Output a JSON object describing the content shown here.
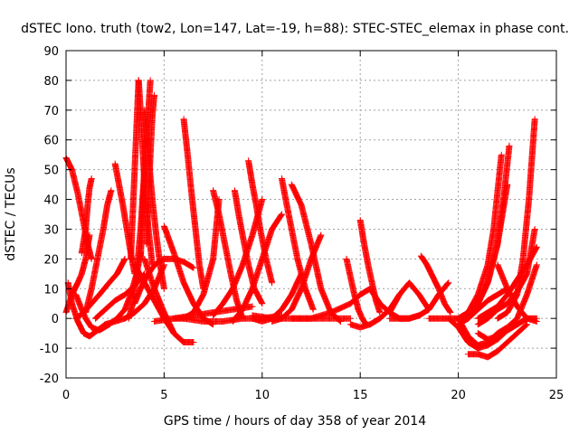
{
  "chart_data": {
    "type": "scatter",
    "title": "dSTEC Iono. truth (tow2, Lon=147, Lat=-19, h=88): STEC-STEC_elemax in phase cont.",
    "xlabel": "GPS time / hours of day 358 of year 2014",
    "ylabel": "dSTEC  / TECUs",
    "xlim": [
      0,
      25
    ],
    "ylim": [
      -20,
      90
    ],
    "xticks": [
      "0",
      "5",
      "10",
      "15",
      "20",
      "25"
    ],
    "yticks": [
      "-20",
      "-10",
      "0",
      "10",
      "20",
      "30",
      "40",
      "50",
      "60",
      "70",
      "80",
      "90"
    ],
    "grid": true,
    "marker": "plus",
    "color": "#ff0000",
    "series": [
      {
        "x": [
          0.0,
          0.3,
          0.6,
          0.9,
          1.1,
          1.3
        ],
        "y": [
          54,
          50,
          42,
          32,
          25,
          20
        ]
      },
      {
        "x": [
          0.1,
          0.3,
          0.6,
          0.9,
          1.2,
          1.6,
          2.0
        ],
        "y": [
          12,
          5,
          -1,
          -5,
          -6,
          -4,
          -2
        ]
      },
      {
        "x": [
          0.0,
          0.3,
          0.6,
          0.8,
          1.0,
          1.2
        ],
        "y": [
          2,
          8,
          12,
          15,
          20,
          28
        ]
      },
      {
        "x": [
          0.5,
          0.8,
          1.0,
          1.3,
          1.7,
          2.2
        ],
        "y": [
          8,
          3,
          0,
          -3,
          -4,
          -2
        ]
      },
      {
        "x": [
          0.8,
          1.0,
          1.1,
          1.2,
          1.3
        ],
        "y": [
          22,
          30,
          38,
          44,
          47
        ]
      },
      {
        "x": [
          0.5,
          0.9,
          1.3,
          1.7,
          2.2,
          2.6,
          3.0
        ],
        "y": [
          0,
          2,
          5,
          8,
          12,
          15,
          20
        ]
      },
      {
        "x": [
          1.0,
          1.3,
          1.6,
          1.9,
          2.1,
          2.3
        ],
        "y": [
          2,
          10,
          20,
          30,
          38,
          43
        ]
      },
      {
        "x": [
          2.5,
          2.7,
          2.9,
          3.1,
          3.3,
          3.5
        ],
        "y": [
          52,
          45,
          38,
          30,
          22,
          15
        ]
      },
      {
        "x": [
          1.5,
          2.0,
          2.5,
          3.0,
          3.5,
          4.0
        ],
        "y": [
          0,
          3,
          6,
          8,
          11,
          15
        ]
      },
      {
        "x": [
          2.2,
          2.6,
          3.0,
          3.3,
          3.6,
          3.8
        ],
        "y": [
          -2,
          0,
          3,
          8,
          15,
          22
        ]
      },
      {
        "x": [
          3.3,
          3.4,
          3.5,
          3.6,
          3.7
        ],
        "y": [
          20,
          35,
          50,
          65,
          80
        ]
      },
      {
        "x": [
          3.7,
          3.8,
          3.9,
          4.0,
          4.2,
          4.4
        ],
        "y": [
          80,
          70,
          58,
          45,
          30,
          18
        ]
      },
      {
        "x": [
          3.8,
          3.9,
          4.0,
          4.1,
          4.2,
          4.3
        ],
        "y": [
          20,
          35,
          50,
          60,
          70,
          80
        ]
      },
      {
        "x": [
          4.0,
          4.2,
          4.4,
          4.6,
          4.8,
          5.0
        ],
        "y": [
          70,
          55,
          40,
          28,
          18,
          10
        ]
      },
      {
        "x": [
          4.1,
          4.2,
          4.3,
          4.4,
          4.5
        ],
        "y": [
          25,
          40,
          55,
          68,
          75
        ]
      },
      {
        "x": [
          3.2,
          3.4,
          3.6,
          3.8,
          4.0
        ],
        "y": [
          0,
          5,
          15,
          30,
          50
        ]
      },
      {
        "x": [
          3.5,
          3.8,
          4.1,
          4.4,
          4.7,
          5.0,
          5.5,
          6.0,
          6.5
        ],
        "y": [
          5,
          10,
          14,
          17,
          19,
          20,
          20,
          19,
          17
        ]
      },
      {
        "x": [
          2.0,
          2.5,
          3.0,
          3.5,
          4.0,
          4.5,
          5.0
        ],
        "y": [
          -2,
          -1,
          0,
          2,
          5,
          10,
          18
        ]
      },
      {
        "x": [
          3.5,
          4.0,
          4.5,
          5.0,
          5.5,
          6.0
        ],
        "y": [
          18,
          12,
          6,
          0,
          -5,
          -8
        ]
      },
      {
        "x": [
          4.0,
          4.5,
          5.0,
          5.5,
          6.0,
          6.5
        ],
        "y": [
          20,
          10,
          2,
          -5,
          -8,
          -8
        ]
      },
      {
        "x": [
          5.0,
          5.5,
          6.0,
          6.5,
          7.0,
          7.5
        ],
        "y": [
          31,
          22,
          12,
          5,
          0,
          -2
        ]
      },
      {
        "x": [
          6.0,
          6.2,
          6.4,
          6.6,
          6.8,
          7.0
        ],
        "y": [
          67,
          55,
          42,
          30,
          18,
          10
        ]
      },
      {
        "x": [
          5.5,
          6.0,
          6.5,
          7.0,
          7.5,
          7.8
        ],
        "y": [
          0,
          0,
          2,
          8,
          20,
          40
        ]
      },
      {
        "x": [
          4.5,
          5.5,
          6.5,
          7.5,
          8.5,
          9.5
        ],
        "y": [
          -1,
          0,
          1,
          2,
          3,
          4
        ]
      },
      {
        "x": [
          6.0,
          7.0,
          8.0,
          9.0,
          10.0,
          11.0
        ],
        "y": [
          0,
          -1,
          -1,
          0,
          0,
          1
        ]
      },
      {
        "x": [
          7.5,
          8.0,
          8.5,
          9.0,
          9.5,
          10.0
        ],
        "y": [
          1,
          5,
          10,
          18,
          28,
          40
        ]
      },
      {
        "x": [
          7.5,
          7.8,
          8.1,
          8.4,
          8.7,
          9.0
        ],
        "y": [
          43,
          35,
          25,
          15,
          6,
          0
        ]
      },
      {
        "x": [
          8.6,
          8.8,
          9.0,
          9.3,
          9.6,
          10.0
        ],
        "y": [
          43,
          35,
          28,
          18,
          10,
          5
        ]
      },
      {
        "x": [
          8.5,
          9.0,
          9.5,
          10.0,
          10.5,
          11.0
        ],
        "y": [
          -1,
          3,
          10,
          20,
          30,
          35
        ]
      },
      {
        "x": [
          9.3,
          9.5,
          9.7,
          9.9,
          10.2,
          10.5
        ],
        "y": [
          53,
          45,
          38,
          30,
          20,
          12
        ]
      },
      {
        "x": [
          9.5,
          10.0,
          10.5,
          11.0,
          11.5,
          12.0
        ],
        "y": [
          0,
          -1,
          0,
          3,
          8,
          15
        ]
      },
      {
        "x": [
          11.0,
          11.2,
          11.5,
          11.8,
          12.2,
          12.6
        ],
        "y": [
          47,
          40,
          30,
          20,
          10,
          3
        ]
      },
      {
        "x": [
          10.5,
          11.0,
          11.5,
          12.0,
          12.5,
          13.0
        ],
        "y": [
          -1,
          0,
          3,
          10,
          20,
          28
        ]
      },
      {
        "x": [
          11.5,
          12.0,
          12.5,
          13.0,
          13.5,
          14.0
        ],
        "y": [
          45,
          38,
          25,
          10,
          2,
          -1
        ]
      },
      {
        "x": [
          9.5,
          10.5,
          11.5,
          12.5,
          13.5,
          14.5
        ],
        "y": [
          1,
          0,
          0,
          0,
          0,
          0
        ]
      },
      {
        "x": [
          11.5,
          12.5,
          13.5,
          14.5,
          15.0,
          15.5
        ],
        "y": [
          0,
          0,
          2,
          5,
          8,
          10
        ]
      },
      {
        "x": [
          14.3,
          14.5,
          14.7,
          14.9,
          15.1,
          15.3
        ],
        "y": [
          20,
          14,
          8,
          3,
          0,
          -2
        ]
      },
      {
        "x": [
          15.0,
          15.2,
          15.4,
          15.6,
          15.8,
          16.0
        ],
        "y": [
          33,
          25,
          18,
          12,
          6,
          2
        ]
      },
      {
        "x": [
          14.5,
          15.0,
          15.5,
          16.0,
          16.5,
          17.0
        ],
        "y": [
          -2,
          -3,
          -2,
          0,
          3,
          8
        ]
      },
      {
        "x": [
          15.5,
          16.0,
          16.5,
          17.0,
          17.5,
          18.0
        ],
        "y": [
          10,
          5,
          2,
          0,
          0,
          1
        ]
      },
      {
        "x": [
          16.5,
          17.0,
          17.5,
          18.0,
          18.5
        ],
        "y": [
          2,
          8,
          12,
          8,
          3
        ]
      },
      {
        "x": [
          16.5,
          17.0,
          17.5,
          18.0,
          18.5,
          19.0,
          19.5
        ],
        "y": [
          0,
          0,
          0,
          1,
          3,
          8,
          12
        ]
      },
      {
        "x": [
          18.1,
          18.4,
          18.7,
          19.0,
          19.3,
          19.6
        ],
        "y": [
          21,
          18,
          14,
          10,
          5,
          2
        ]
      },
      {
        "x": [
          18.5,
          19.0,
          19.5,
          20.0,
          20.5
        ],
        "y": [
          0,
          0,
          0,
          0,
          0
        ]
      },
      {
        "x": [
          19.5,
          20.0,
          20.5,
          21.0,
          21.5,
          22.0,
          22.5,
          23.0,
          23.5
        ],
        "y": [
          0,
          -3,
          -8,
          -10,
          -9,
          -7,
          -4,
          -2,
          0
        ]
      },
      {
        "x": [
          20.0,
          20.5,
          21.0,
          21.5,
          22.0,
          22.5,
          23.0
        ],
        "y": [
          0,
          -6,
          -9,
          -8,
          -5,
          -3,
          -1
        ]
      },
      {
        "x": [
          20.5,
          21.0,
          21.5,
          22.0,
          22.5,
          23.0,
          23.5
        ],
        "y": [
          -12,
          -12,
          -13,
          -11,
          -8,
          -5,
          -2
        ]
      },
      {
        "x": [
          21.0,
          21.5,
          22.0,
          22.5,
          23.0,
          23.5,
          24.0
        ],
        "y": [
          -5,
          -7,
          -6,
          -4,
          -2,
          0,
          0
        ]
      },
      {
        "x": [
          20.0,
          20.5,
          21.0,
          21.5,
          22.0,
          22.5
        ],
        "y": [
          0,
          2,
          5,
          12,
          25,
          45
        ]
      },
      {
        "x": [
          20.5,
          21.0,
          21.5,
          22.0,
          22.3,
          22.6
        ],
        "y": [
          0,
          5,
          12,
          25,
          40,
          58
        ]
      },
      {
        "x": [
          20.0,
          20.5,
          21.0,
          21.5,
          21.8,
          22.2
        ],
        "y": [
          0,
          2,
          8,
          18,
          30,
          55
        ]
      },
      {
        "x": [
          22.0,
          22.5,
          23.0,
          23.3,
          23.6,
          23.9
        ],
        "y": [
          0,
          2,
          8,
          20,
          40,
          67
        ]
      },
      {
        "x": [
          21.0,
          21.5,
          22.0,
          22.5,
          23.0,
          23.5,
          23.9
        ],
        "y": [
          -2,
          0,
          3,
          5,
          9,
          15,
          30
        ]
      },
      {
        "x": [
          20.0,
          20.5,
          21.0,
          21.5,
          22.0,
          22.5
        ],
        "y": [
          -2,
          0,
          3,
          6,
          8,
          10
        ]
      },
      {
        "x": [
          21.0,
          21.5,
          22.0,
          22.5,
          23.0,
          23.5,
          24.0
        ],
        "y": [
          0,
          2,
          4,
          8,
          13,
          18,
          24
        ]
      },
      {
        "x": [
          22.0,
          22.5,
          23.0,
          23.5,
          24.0
        ],
        "y": [
          18,
          10,
          4,
          0,
          -1
        ]
      },
      {
        "x": [
          22.5,
          23.0,
          23.5,
          24.0
        ],
        "y": [
          -3,
          0,
          8,
          18
        ]
      }
    ]
  }
}
